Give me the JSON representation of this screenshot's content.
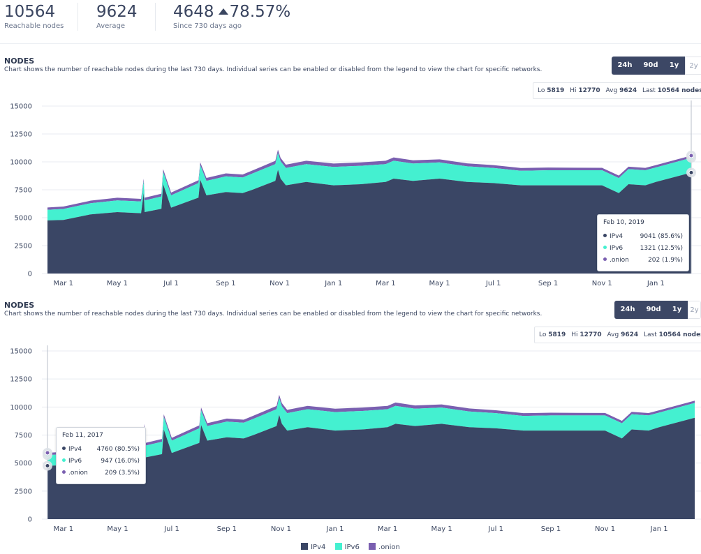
{
  "stats": [
    {
      "value": "10564",
      "label": "Reachable nodes"
    },
    {
      "value": "9624",
      "label": "Average"
    },
    {
      "value": "4648",
      "change": "78.57%",
      "label": "Since 730 days ago"
    }
  ],
  "range_buttons": [
    "24h",
    "90d",
    "1y",
    "2y"
  ],
  "sections": [
    {
      "title": "NODES",
      "description": "Chart shows the number of reachable nodes during the last 730 days. Individual series can be enabled or disabled from the legend to view the chart for specific networks.",
      "stats_box": {
        "lo_label": "Lo",
        "lo": "5819",
        "hi_label": "Hi",
        "hi": "12770",
        "avg_label": "Avg",
        "avg": "9624",
        "last_label": "Last",
        "last": "10564 nodes"
      },
      "tooltip": {
        "date": "Feb 10, 2019",
        "rows": [
          {
            "name": "IPv4",
            "value": "9041 (85.6%)"
          },
          {
            "name": "IPv6",
            "value": "1321 (12.5%)"
          },
          {
            "name": ".onion",
            "value": "202 (1.9%)"
          }
        ]
      }
    },
    {
      "title": "NODES",
      "description": "Chart shows the number of reachable nodes during the last 730 days. Individual series can be enabled or disabled from the legend to view the chart for specific networks.",
      "stats_box": {
        "lo_label": "Lo",
        "lo": "5819",
        "hi_label": "Hi",
        "hi": "12770",
        "avg_label": "Avg",
        "avg": "9624",
        "last_label": "Last",
        "last": "10564 nodes"
      },
      "tooltip": {
        "date": "Feb 11, 2017",
        "rows": [
          {
            "name": "IPv4",
            "value": "4760 (80.5%)"
          },
          {
            "name": "IPv6",
            "value": "947 (16.0%)"
          },
          {
            "name": ".onion",
            "value": "209 (3.5%)"
          }
        ]
      }
    }
  ],
  "legend": [
    {
      "name": "IPv4",
      "color": "#3a4665"
    },
    {
      "name": "IPv6",
      "color": "#44f0d0"
    },
    {
      "name": ".onion",
      "color": "#7a5fb0"
    }
  ],
  "chart_data": [
    {
      "type": "area",
      "stacked": true,
      "y_ticks": [
        0,
        2500,
        5000,
        7500,
        10000,
        12500,
        15000
      ],
      "ylim": [
        0,
        15000
      ],
      "x_ticks": [
        "Mar 1",
        "May 1",
        "Jul 1",
        "Sep 1",
        "Nov 1",
        "Jan 1",
        "Mar 1",
        "May 1",
        "Jul 1",
        "Sep 1",
        "Nov 1",
        "Jan 1"
      ],
      "x_dates": [
        "2017-02-11",
        "2017-03-01",
        "2017-04-01",
        "2017-05-01",
        "2017-05-28",
        "2017-05-31",
        "2017-06-01",
        "2017-06-20",
        "2017-06-22",
        "2017-07-01",
        "2017-08-01",
        "2017-08-03",
        "2017-08-10",
        "2017-09-01",
        "2017-09-20",
        "2017-10-01",
        "2017-10-27",
        "2017-10-30",
        "2017-11-02",
        "2017-11-08",
        "2017-12-01",
        "2018-01-01",
        "2018-02-01",
        "2018-03-01",
        "2018-03-10",
        "2018-04-01",
        "2018-05-01",
        "2018-06-01",
        "2018-07-01",
        "2018-08-01",
        "2018-09-01",
        "2018-10-01",
        "2018-11-01",
        "2018-11-20",
        "2018-12-01",
        "2018-12-20",
        "2019-01-01",
        "2019-02-10"
      ],
      "series": [
        {
          "name": "IPv4",
          "values": [
            4760,
            4800,
            5300,
            5500,
            5400,
            7200,
            5500,
            5800,
            8000,
            5900,
            6800,
            8400,
            7000,
            7300,
            7200,
            7500,
            8300,
            9300,
            8500,
            7900,
            8200,
            7900,
            8000,
            8200,
            8500,
            8300,
            8500,
            8200,
            8100,
            7900,
            7900,
            7900,
            7900,
            7200,
            8000,
            7900,
            8200,
            9041
          ]
        },
        {
          "name": "IPv6",
          "values": [
            947,
            980,
            1000,
            1050,
            1050,
            1050,
            1050,
            1100,
            1100,
            1100,
            1300,
            1300,
            1300,
            1400,
            1400,
            1450,
            1500,
            1500,
            1550,
            1550,
            1600,
            1650,
            1650,
            1600,
            1600,
            1550,
            1450,
            1400,
            1350,
            1300,
            1350,
            1350,
            1350,
            1350,
            1350,
            1350,
            1300,
            1321
          ]
        },
        {
          "name": ".onion",
          "values": [
            209,
            220,
            230,
            240,
            240,
            240,
            240,
            250,
            250,
            250,
            260,
            260,
            260,
            270,
            270,
            280,
            290,
            290,
            300,
            300,
            300,
            300,
            300,
            300,
            300,
            290,
            280,
            270,
            260,
            250,
            240,
            230,
            220,
            220,
            220,
            210,
            210,
            202
          ]
        }
      ]
    },
    {
      "type": "area",
      "stacked": true,
      "y_ticks": [
        0,
        2500,
        5000,
        7500,
        10000,
        12500,
        15000
      ],
      "ylim": [
        0,
        15000
      ],
      "x_ticks": [
        "Mar 1",
        "May 1",
        "Jul 1",
        "Sep 1",
        "Nov 1",
        "Jan 1",
        "Mar 1",
        "May 1",
        "Jul 1",
        "Sep 1",
        "Nov 1",
        "Jan 1"
      ],
      "x_dates": [
        "2017-02-11",
        "2017-03-01",
        "2017-04-01",
        "2017-05-01",
        "2017-05-28",
        "2017-05-31",
        "2017-06-01",
        "2017-06-20",
        "2017-06-22",
        "2017-07-01",
        "2017-08-01",
        "2017-08-03",
        "2017-08-10",
        "2017-09-01",
        "2017-09-20",
        "2017-10-01",
        "2017-10-27",
        "2017-10-30",
        "2017-11-02",
        "2017-11-08",
        "2017-12-01",
        "2018-01-01",
        "2018-02-01",
        "2018-03-01",
        "2018-03-10",
        "2018-04-01",
        "2018-05-01",
        "2018-06-01",
        "2018-07-01",
        "2018-08-01",
        "2018-09-01",
        "2018-10-01",
        "2018-11-01",
        "2018-11-20",
        "2018-12-01",
        "2018-12-20",
        "2019-01-01",
        "2019-02-10"
      ],
      "series": [
        {
          "name": "IPv4",
          "values": [
            4760,
            4800,
            5300,
            5500,
            5400,
            7200,
            5500,
            5800,
            8000,
            5900,
            6800,
            8400,
            7000,
            7300,
            7200,
            7500,
            8300,
            9300,
            8500,
            7900,
            8200,
            7900,
            8000,
            8200,
            8500,
            8300,
            8500,
            8200,
            8100,
            7900,
            7900,
            7900,
            7900,
            7200,
            8000,
            7900,
            8200,
            9041
          ]
        },
        {
          "name": "IPv6",
          "values": [
            947,
            980,
            1000,
            1050,
            1050,
            1050,
            1050,
            1100,
            1100,
            1100,
            1300,
            1300,
            1300,
            1400,
            1400,
            1450,
            1500,
            1500,
            1550,
            1550,
            1600,
            1650,
            1650,
            1600,
            1600,
            1550,
            1450,
            1400,
            1350,
            1300,
            1350,
            1350,
            1350,
            1350,
            1350,
            1350,
            1300,
            1321
          ]
        },
        {
          "name": ".onion",
          "values": [
            209,
            220,
            230,
            240,
            240,
            240,
            240,
            250,
            250,
            250,
            260,
            260,
            260,
            270,
            270,
            280,
            290,
            290,
            300,
            300,
            300,
            300,
            300,
            300,
            300,
            290,
            280,
            270,
            260,
            250,
            240,
            230,
            220,
            220,
            220,
            210,
            210,
            202
          ]
        }
      ]
    }
  ]
}
